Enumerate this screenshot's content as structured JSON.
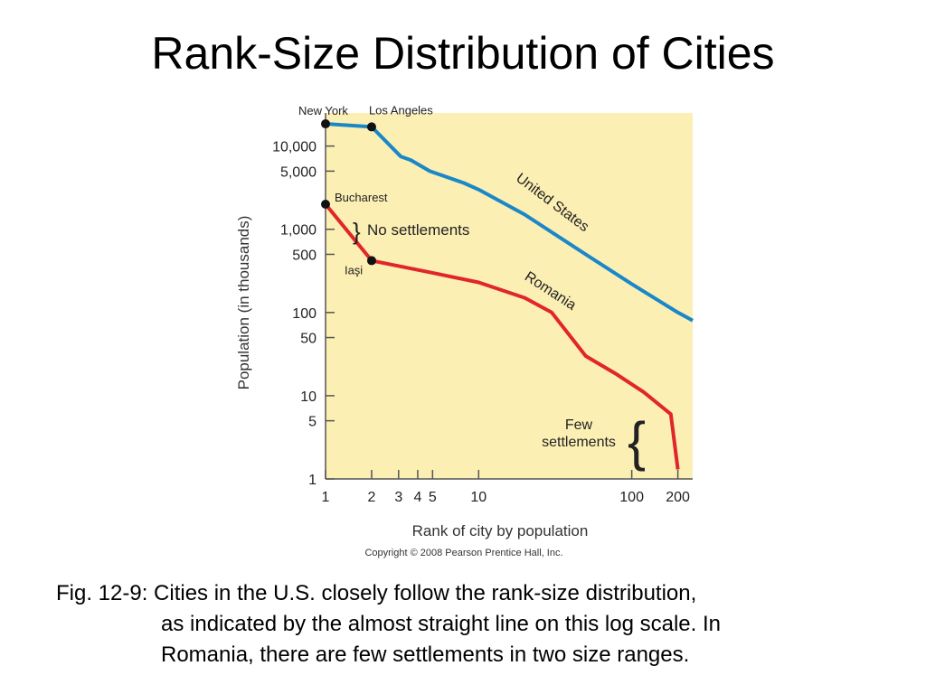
{
  "slide": {
    "title": "Rank-Size Distribution of Cities",
    "caption_lines": [
      "Fig. 12-9: Cities in the U.S. closely follow the rank-size distribution,",
      "as indicated by the almost straight line on this log scale.  In",
      "Romania, there are few settlements in two size ranges."
    ]
  },
  "chart_data": {
    "type": "line",
    "xlabel": "Rank of city by population",
    "ylabel": "Population (in thousands)",
    "x_scale": "log",
    "y_scale": "log",
    "xlim": [
      1,
      250
    ],
    "ylim": [
      1,
      25000
    ],
    "x_ticks": [
      1,
      2,
      3,
      4,
      5,
      10,
      100,
      200
    ],
    "x_tick_labels": [
      "1",
      "2",
      "3",
      "4",
      "5",
      "10",
      "100",
      "200"
    ],
    "y_ticks": [
      1,
      5,
      10,
      50,
      100,
      500,
      1000,
      5000,
      10000
    ],
    "y_tick_labels": [
      "1",
      "5",
      "10",
      "50",
      "100",
      "500",
      "1,000",
      "5,000",
      "10,000"
    ],
    "background_color": "#fcefb4",
    "series": [
      {
        "name": "United States",
        "color": "#1a87c8",
        "points": [
          [
            1,
            18500
          ],
          [
            2,
            17000
          ],
          [
            3.1,
            7500
          ],
          [
            3.6,
            6800
          ],
          [
            4.8,
            5000
          ],
          [
            8,
            3600
          ],
          [
            10,
            3000
          ],
          [
            20,
            1500
          ],
          [
            50,
            500
          ],
          [
            100,
            220
          ],
          [
            200,
            100
          ],
          [
            250,
            80
          ]
        ]
      },
      {
        "name": "Romania",
        "color": "#e0262a",
        "points": [
          [
            1,
            2000
          ],
          [
            2,
            420
          ],
          [
            5,
            300
          ],
          [
            10,
            230
          ],
          [
            20,
            150
          ],
          [
            30,
            100
          ],
          [
            50,
            30
          ],
          [
            80,
            18
          ],
          [
            120,
            11
          ],
          [
            180,
            6
          ],
          [
            200,
            1.3
          ]
        ]
      }
    ],
    "marked_cities": [
      {
        "name": "New York",
        "x": 1,
        "y": 18500
      },
      {
        "name": "Los Angeles",
        "x": 2,
        "y": 17000
      },
      {
        "name": "Bucharest",
        "x": 1,
        "y": 2000
      },
      {
        "name": "Iaşi",
        "x": 2,
        "y": 420
      }
    ],
    "annotations": {
      "no_settlements": "No settlements",
      "few_settlements_line1": "Few",
      "few_settlements_line2": "settlements",
      "copyright": "Copyright © 2008 Pearson Prentice Hall, Inc."
    }
  }
}
